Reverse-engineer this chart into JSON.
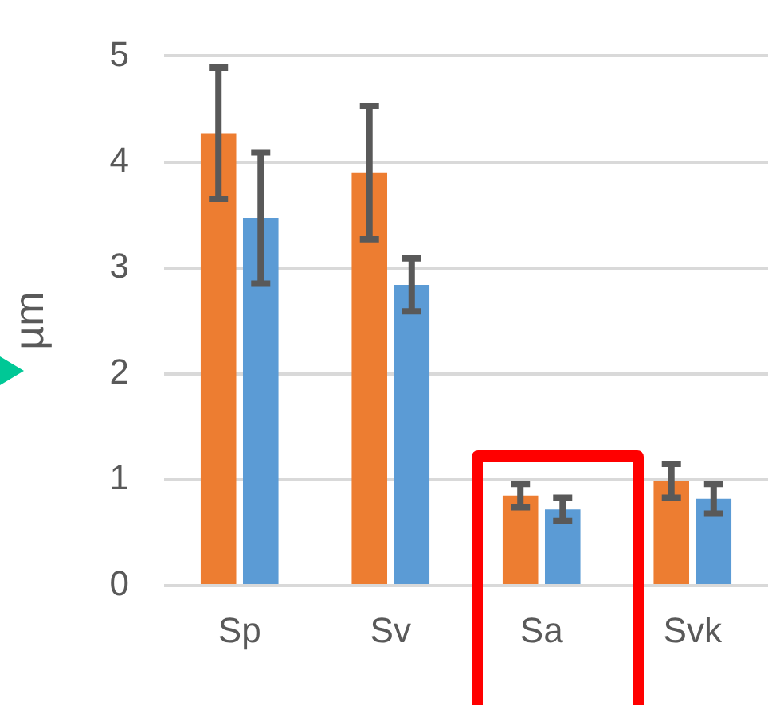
{
  "chart_data": {
    "type": "bar",
    "ylabel": "µm",
    "categories": [
      "Sp",
      "Sv",
      "Sa",
      "Svk"
    ],
    "series": [
      {
        "color": "#ed7d31",
        "values": [
          4.27,
          3.9,
          0.85,
          0.99
        ],
        "errors": [
          0.62,
          0.63,
          0.11,
          0.16
        ]
      },
      {
        "color": "#5b9bd5",
        "values": [
          3.47,
          2.84,
          0.72,
          0.82
        ],
        "errors": [
          0.62,
          0.25,
          0.11,
          0.14
        ]
      }
    ],
    "ylim": [
      0,
      5
    ],
    "yticks": [
      0,
      1,
      2,
      3,
      4,
      5
    ],
    "grid": "y",
    "legend": false
  }
}
